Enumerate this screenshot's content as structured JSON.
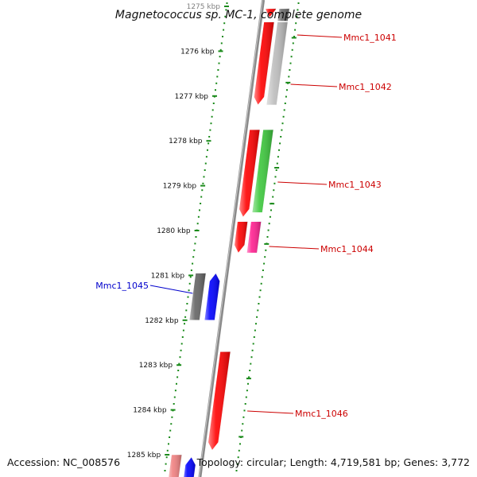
{
  "title": "Magnetococcus sp. MC-1, complete genome",
  "footer": {
    "accession": "Accession: NC_008576",
    "topology": "Topology: circular; Length: 4,719,581 bp; Genes: 3,772"
  },
  "colors": {
    "ruler_dots": "#1a8a1a",
    "backbone": "#808080",
    "label_forward": "#cc0000",
    "label_reverse": "#0000cc"
  },
  "ticks": [
    {
      "label": "1275 kbp",
      "kbp": 1275
    },
    {
      "label": "1276 kbp",
      "kbp": 1276
    },
    {
      "label": "1277 kbp",
      "kbp": 1277
    },
    {
      "label": "1278 kbp",
      "kbp": 1278
    },
    {
      "label": "1279 kbp",
      "kbp": 1279
    },
    {
      "label": "1280 kbp",
      "kbp": 1280
    },
    {
      "label": "1281 kbp",
      "kbp": 1281
    },
    {
      "label": "1282 kbp",
      "kbp": 1282
    },
    {
      "label": "1283 kbp",
      "kbp": 1283
    },
    {
      "label": "1284 kbp",
      "kbp": 1284
    },
    {
      "label": "1285 kbp",
      "kbp": 1285
    }
  ],
  "genes": [
    {
      "name": "Mmc1_1041",
      "labeled": true,
      "label_color": "#cc0000",
      "start_kbp": 1275.05,
      "end_kbp": 1275.25,
      "strand": "reverse",
      "track": 0,
      "color": "#ff0000"
    },
    {
      "name": "Mmc1_1041_ortholog",
      "labeled": false,
      "start_kbp": 1275.05,
      "end_kbp": 1275.33,
      "strand": "none",
      "track": 1,
      "color": "#6a6a6a"
    },
    {
      "name": "Mmc1_1042",
      "labeled": true,
      "label_color": "#cc0000",
      "start_kbp": 1275.35,
      "end_kbp": 1277.2,
      "strand": "reverse",
      "track": 0,
      "color": "#ff0000"
    },
    {
      "name": "Mmc1_1042_ortholog",
      "labeled": false,
      "start_kbp": 1275.35,
      "end_kbp": 1277.2,
      "strand": "none",
      "track": 1,
      "color": "#bdbdbd"
    },
    {
      "name": "Mmc1_1043",
      "labeled": true,
      "label_color": "#cc0000",
      "start_kbp": 1277.75,
      "end_kbp": 1279.7,
      "strand": "reverse",
      "track": 0,
      "color": "#ff0000"
    },
    {
      "name": "Mmc1_1043_ortholog",
      "labeled": false,
      "start_kbp": 1277.75,
      "end_kbp": 1279.6,
      "strand": "none",
      "track": 1,
      "color": "#3cc83c"
    },
    {
      "name": "Mmc1_1044",
      "labeled": true,
      "label_color": "#cc0000",
      "start_kbp": 1279.8,
      "end_kbp": 1280.5,
      "strand": "reverse",
      "track": 0,
      "color": "#ff0000"
    },
    {
      "name": "Mmc1_1044_ortholog",
      "labeled": false,
      "start_kbp": 1279.8,
      "end_kbp": 1280.5,
      "strand": "none",
      "track": 1,
      "color": "#ff2090"
    },
    {
      "name": "Mmc1_1045_ortholog",
      "labeled": false,
      "start_kbp": 1280.95,
      "end_kbp": 1282.0,
      "strand": "none",
      "track": -2,
      "color": "#646464"
    },
    {
      "name": "Mmc1_1045",
      "labeled": true,
      "label_color": "#0000cc",
      "start_kbp": 1280.95,
      "end_kbp": 1282.0,
      "strand": "forward",
      "track": -1,
      "color": "#0000ff"
    },
    {
      "name": "Mmc1_1046",
      "labeled": true,
      "label_color": "#cc0000",
      "start_kbp": 1282.7,
      "end_kbp": 1284.9,
      "strand": "reverse",
      "track": 0,
      "color": "#ff0000"
    },
    {
      "name": "Mmc1_1047_ortholog",
      "labeled": false,
      "start_kbp": 1285.0,
      "end_kbp": 1285.6,
      "strand": "none",
      "track": -2,
      "color": "#f08080"
    },
    {
      "name": "Mmc1_1047",
      "labeled": false,
      "start_kbp": 1285.05,
      "end_kbp": 1285.6,
      "strand": "forward",
      "track": -1,
      "color": "#0000ff"
    }
  ]
}
